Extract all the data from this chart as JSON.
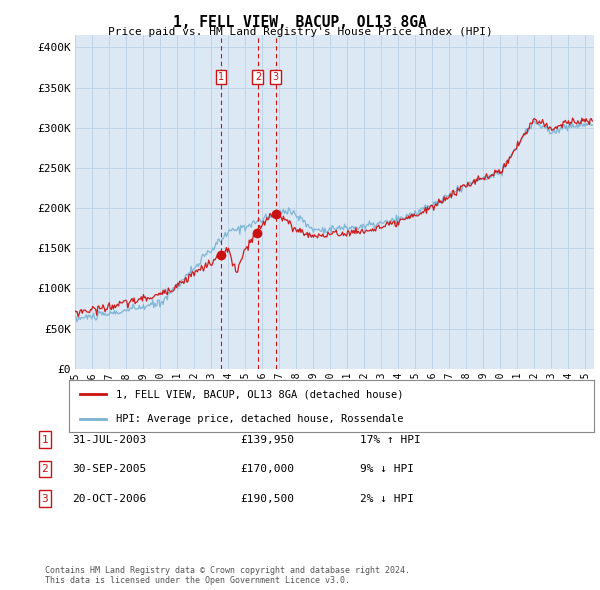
{
  "title": "1, FELL VIEW, BACUP, OL13 8GA",
  "subtitle": "Price paid vs. HM Land Registry's House Price Index (HPI)",
  "ylabel_ticks": [
    "£0",
    "£50K",
    "£100K",
    "£150K",
    "£200K",
    "£250K",
    "£300K",
    "£350K",
    "£400K"
  ],
  "ytick_values": [
    0,
    50000,
    100000,
    150000,
    200000,
    250000,
    300000,
    350000,
    400000
  ],
  "ylim": [
    0,
    415000
  ],
  "xlim_start": 1995.0,
  "xlim_end": 2025.5,
  "hpi_color": "#7ab3d4",
  "price_color": "#cc1111",
  "vline_color": "#cc1111",
  "chart_bg": "#dce9f5",
  "transactions": [
    {
      "label": "1",
      "year": 2003.58,
      "price": 139950
    },
    {
      "label": "2",
      "year": 2005.75,
      "price": 170000
    },
    {
      "label": "3",
      "year": 2006.8,
      "price": 190500
    }
  ],
  "legend_label_price": "1, FELL VIEW, BACUP, OL13 8GA (detached house)",
  "legend_label_hpi": "HPI: Average price, detached house, Rossendale",
  "table_rows": [
    {
      "num": "1",
      "date": "31-JUL-2003",
      "price": "£139,950",
      "pct": "17% ↑ HPI"
    },
    {
      "num": "2",
      "date": "30-SEP-2005",
      "price": "£170,000",
      "pct": "9% ↓ HPI"
    },
    {
      "num": "3",
      "date": "20-OCT-2006",
      "price": "£190,500",
      "pct": "2% ↓ HPI"
    }
  ],
  "footer": "Contains HM Land Registry data © Crown copyright and database right 2024.\nThis data is licensed under the Open Government Licence v3.0.",
  "bg_color": "#ffffff",
  "grid_color": "#c0d4e8",
  "xtick_years": [
    1995,
    1996,
    1997,
    1998,
    1999,
    2000,
    2001,
    2002,
    2003,
    2004,
    2005,
    2006,
    2007,
    2008,
    2009,
    2010,
    2011,
    2012,
    2013,
    2014,
    2015,
    2016,
    2017,
    2018,
    2019,
    2020,
    2021,
    2022,
    2023,
    2024,
    2025
  ]
}
